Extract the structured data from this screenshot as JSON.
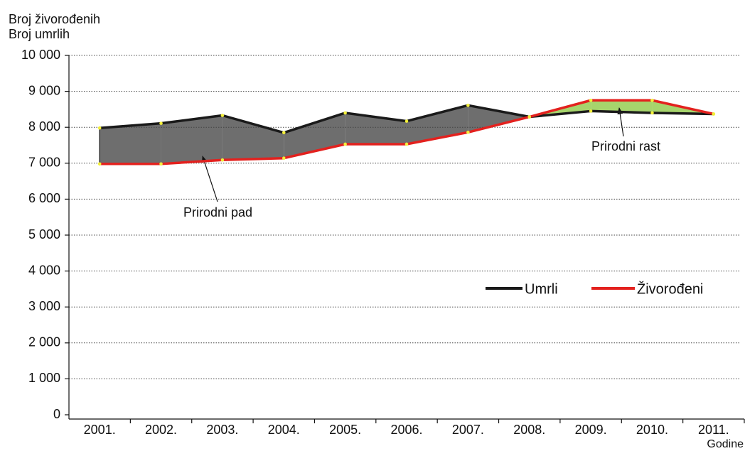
{
  "chart_data": {
    "type": "line",
    "ylabel": [
      "Broj živorođenih",
      "Broj umrlih"
    ],
    "xlabel": "Godine",
    "categories": [
      "2001.",
      "2002.",
      "2003.",
      "2004.",
      "2005.",
      "2006.",
      "2007.",
      "2008.",
      "2009.",
      "2010.",
      "2011."
    ],
    "series": [
      {
        "name": "Umrli",
        "color": "#1a1a1a",
        "values": [
          7980,
          8110,
          8330,
          7850,
          8400,
          8170,
          8610,
          8290,
          8450,
          8400,
          8370
        ]
      },
      {
        "name": "Živorođeni",
        "color": "#e3211e",
        "values": [
          6980,
          6980,
          7090,
          7140,
          7530,
          7530,
          7860,
          8290,
          8750,
          8750,
          8370
        ]
      }
    ],
    "ylim": [
      0,
      10000
    ],
    "yticks": [
      0,
      {
        "value": 1000,
        "label": "1 000"
      },
      {
        "value": 2000,
        "label": "2 000"
      },
      {
        "value": 3000,
        "label": "3 000"
      },
      {
        "value": 4000,
        "label": "4 000"
      },
      {
        "value": 5000,
        "label": "5 000"
      },
      {
        "value": 6000,
        "label": "6 000"
      },
      {
        "value": 7000,
        "label": "7 000"
      },
      {
        "value": 8000,
        "label": "8 000"
      },
      {
        "value": 9000,
        "label": "9 000"
      },
      {
        "value": 10000,
        "label": "10 000"
      }
    ],
    "grid": true,
    "annotations": [
      "Prirodni pad",
      "Prirodni rast"
    ]
  }
}
